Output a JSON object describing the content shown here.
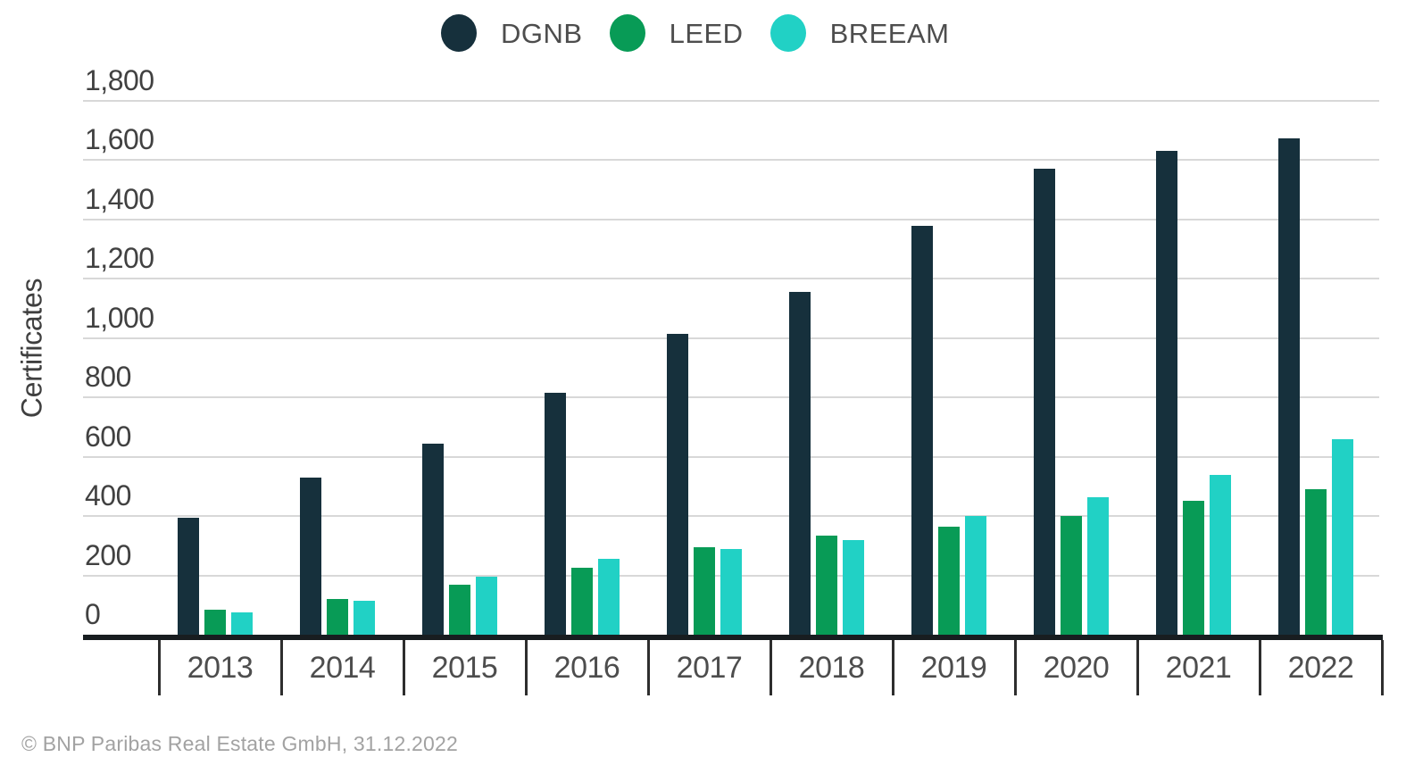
{
  "chart_data": {
    "type": "bar",
    "title": "",
    "categories": [
      "2013",
      "2014",
      "2015",
      "2016",
      "2017",
      "2018",
      "2019",
      "2020",
      "2021",
      "2022"
    ],
    "series": [
      {
        "name": "DGNB",
        "color": "#16303c",
        "values": [
          395,
          530,
          645,
          815,
          1015,
          1155,
          1380,
          1570,
          1630,
          1675
        ]
      },
      {
        "name": "LEED",
        "color": "#089b56",
        "values": [
          85,
          120,
          170,
          225,
          295,
          335,
          365,
          400,
          450,
          490
        ]
      },
      {
        "name": "BREEAM",
        "color": "#21d1c5",
        "values": [
          75,
          115,
          195,
          255,
          290,
          320,
          400,
          465,
          540,
          660
        ]
      }
    ],
    "xlabel": "",
    "ylabel": "Certificates",
    "ylim": [
      0,
      1800
    ],
    "ytick_step": 200,
    "yticks": [
      {
        "label": "1,800",
        "value": 1800
      },
      {
        "label": "1,600",
        "value": 1600
      },
      {
        "label": "1,400",
        "value": 1400
      },
      {
        "label": "1,200",
        "value": 1200
      },
      {
        "label": "1,000",
        "value": 1000
      },
      {
        "label": "800",
        "value": 800
      },
      {
        "label": "600",
        "value": 600
      },
      {
        "label": "400",
        "value": 400
      },
      {
        "label": "200",
        "value": 200
      },
      {
        "label": "0",
        "value": 0
      }
    ],
    "grid": "horizontal",
    "legend_position": "top"
  },
  "footer": {
    "source": "© BNP Paribas Real Estate GmbH, 31.12.2022"
  }
}
